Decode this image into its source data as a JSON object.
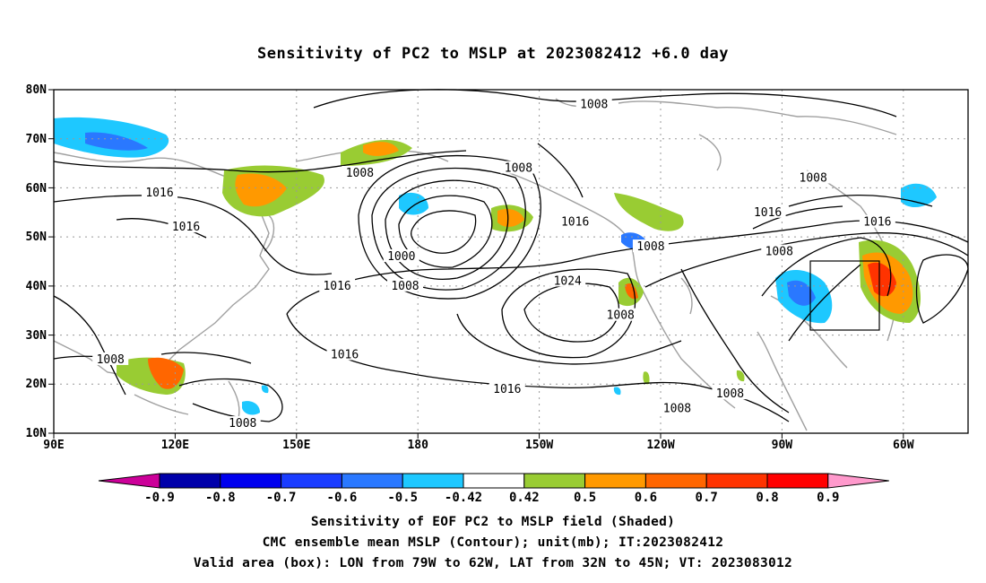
{
  "title": "Sensitivity of PC2 to MSLP at 2023082412 +6.0 day",
  "lat_labels": [
    "80N",
    "70N",
    "60N",
    "50N",
    "40N",
    "30N",
    "20N",
    "10N"
  ],
  "lon_labels": [
    "90E",
    "120E",
    "150E",
    "180",
    "150W",
    "120W",
    "90W",
    "60W"
  ],
  "contour_labels": [
    {
      "text": "1008",
      "lon": -127,
      "lat": 77
    },
    {
      "text": "1008",
      "lon": -147,
      "lat": 64
    },
    {
      "text": "1008",
      "lon": 171,
      "lat": 63
    },
    {
      "text": "1016",
      "lon": 118,
      "lat": 59
    },
    {
      "text": "1016",
      "lon": 125,
      "lat": 52
    },
    {
      "text": "1016",
      "lon": -132,
      "lat": 53
    },
    {
      "text": "1000",
      "lon": -178,
      "lat": 46
    },
    {
      "text": "1008",
      "lon": -177,
      "lat": 40
    },
    {
      "text": "1016",
      "lon": 165,
      "lat": 40
    },
    {
      "text": "1024",
      "lon": -134,
      "lat": 41
    },
    {
      "text": "1008",
      "lon": -120,
      "lat": 34
    },
    {
      "text": "1008",
      "lon": -112,
      "lat": 48
    },
    {
      "text": "1016",
      "lon": -81,
      "lat": 55
    },
    {
      "text": "1008",
      "lon": -69,
      "lat": 62
    },
    {
      "text": "1008",
      "lon": -78,
      "lat": 47
    },
    {
      "text": "1016",
      "lon": -52,
      "lat": 53
    },
    {
      "text": "1008",
      "lon": 105,
      "lat": 25
    },
    {
      "text": "1016",
      "lon": 167,
      "lat": 26
    },
    {
      "text": "1016",
      "lon": -150,
      "lat": 19
    },
    {
      "text": "1008",
      "lon": -91,
      "lat": 18
    },
    {
      "text": "1008",
      "lon": -105,
      "lat": 15
    },
    {
      "text": "1008",
      "lon": 140,
      "lat": 12
    }
  ],
  "colorbar": {
    "labels": [
      "-0.9",
      "-0.8",
      "-0.7",
      "-0.6",
      "-0.5",
      "-0.42",
      "0.42",
      "0.5",
      "0.6",
      "0.7",
      "0.8",
      "0.9"
    ],
    "colors": [
      "#cc0099",
      "#0000aa",
      "#0000ee",
      "#1a3cff",
      "#2a78ff",
      "#1ec8ff",
      "#ffffff",
      "#99cc33",
      "#ff9900",
      "#ff6600",
      "#ff3300",
      "#ff0000",
      "#ff99cc"
    ]
  },
  "valid_box": {
    "lon_min": -79,
    "lon_max": -62,
    "lat_min": 32,
    "lat_max": 45
  },
  "footer": {
    "line1": "Sensitivity of EOF PC2 to MSLP field (Shaded)",
    "line2": "CMC ensemble mean MSLP (Contour); unit(mb); IT:2023082412",
    "line3": "Valid area (box): LON from 79W to 62W, LAT from 32N to 45N; VT: 2023083012"
  }
}
